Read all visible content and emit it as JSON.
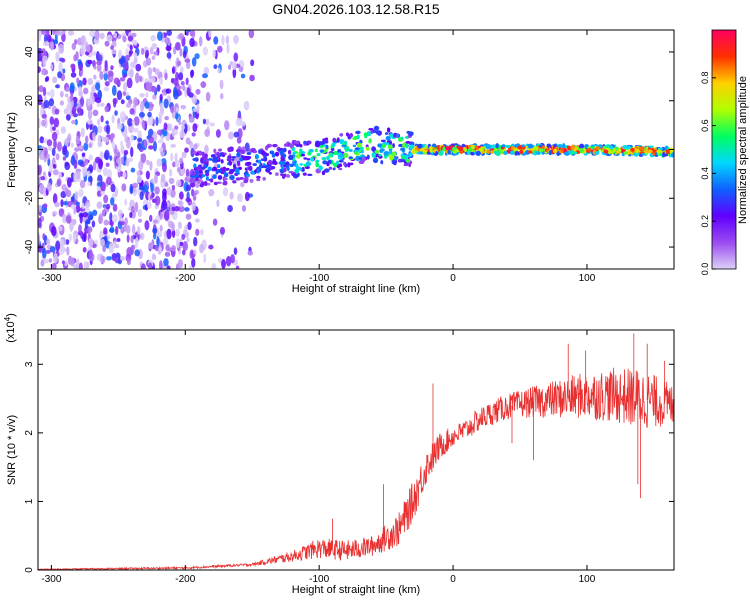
{
  "title": "GN04.2026.103.12.58.R15",
  "chart_data": [
    {
      "type": "heatmap",
      "name": "spectrogram",
      "xlabel": "Height of straight line (km)",
      "ylabel": "Frequency (Hz)",
      "xlim": [
        -310,
        165
      ],
      "ylim": [
        -49,
        49
      ],
      "xticks": [
        -300,
        -200,
        -100,
        0,
        100
      ],
      "yticks": [
        40,
        20,
        0,
        -20,
        -40
      ],
      "colorbar": {
        "label": "Normalized spectral amplitude",
        "range": [
          0,
          1
        ],
        "ticks": [
          "0.0",
          "0.2",
          "0.4",
          "0.6",
          "0.8"
        ],
        "tick_values": [
          0.0,
          0.2,
          0.4,
          0.6,
          0.8
        ],
        "colors": [
          "#dcd0f8",
          "#9a4cf0",
          "#6000ff",
          "#1060ff",
          "#00d8ff",
          "#00ff60",
          "#b0ff00",
          "#ffd000",
          "#ff3000",
          "#ff0060"
        ]
      },
      "features": {
        "noise_region_km": [
          -310,
          -190
        ],
        "track_frequency_hz": [
          [
            -195,
            -8
          ],
          [
            -150,
            -6
          ],
          [
            -100,
            -3
          ],
          [
            -60,
            2
          ],
          [
            -30,
            0
          ],
          [
            0,
            0
          ],
          [
            50,
            0
          ],
          [
            100,
            0
          ],
          [
            165,
            -1
          ]
        ]
      }
    },
    {
      "type": "line",
      "name": "snr",
      "xlabel": "Height of straight line (km)",
      "ylabel": "SNR (10 * v/v)",
      "y_multiplier": "(x10",
      "y_multiplier_exp": "4",
      "y_multiplier_close": ")",
      "xlim": [
        -310,
        165
      ],
      "ylim": [
        0,
        3.5
      ],
      "xticks": [
        -300,
        -200,
        -100,
        0,
        100
      ],
      "yticks": [
        0,
        1,
        2,
        3
      ],
      "color": "#e83030",
      "trend": [
        [
          -310,
          0.01
        ],
        [
          -200,
          0.03
        ],
        [
          -150,
          0.08
        ],
        [
          -120,
          0.2
        ],
        [
          -100,
          0.32
        ],
        [
          -80,
          0.28
        ],
        [
          -60,
          0.35
        ],
        [
          -40,
          0.6
        ],
        [
          -30,
          1.0
        ],
        [
          -20,
          1.5
        ],
        [
          -10,
          1.8
        ],
        [
          0,
          1.95
        ],
        [
          10,
          2.05
        ],
        [
          20,
          2.2
        ],
        [
          30,
          2.3
        ],
        [
          40,
          2.38
        ],
        [
          50,
          2.42
        ],
        [
          60,
          2.45
        ],
        [
          80,
          2.5
        ],
        [
          100,
          2.55
        ],
        [
          120,
          2.55
        ],
        [
          140,
          2.5
        ],
        [
          165,
          2.4
        ]
      ],
      "noise": [
        [
          -310,
          0.005
        ],
        [
          -150,
          0.02
        ],
        [
          -120,
          0.08
        ],
        [
          -100,
          0.15
        ],
        [
          -60,
          0.15
        ],
        [
          -30,
          0.3
        ],
        [
          0,
          0.15
        ],
        [
          50,
          0.2
        ],
        [
          100,
          0.35
        ],
        [
          140,
          0.45
        ],
        [
          165,
          0.3
        ]
      ],
      "spikes": [
        [
          -15,
          2.72
        ],
        [
          -52,
          1.25
        ],
        [
          -90,
          0.75
        ],
        [
          135,
          3.45
        ],
        [
          145,
          3.3
        ],
        [
          140,
          1.05
        ],
        [
          138,
          1.25
        ],
        [
          86,
          3.3
        ],
        [
          99,
          3.2
        ],
        [
          60,
          1.6
        ],
        [
          44,
          1.85
        ],
        [
          158,
          3.05
        ]
      ]
    }
  ]
}
